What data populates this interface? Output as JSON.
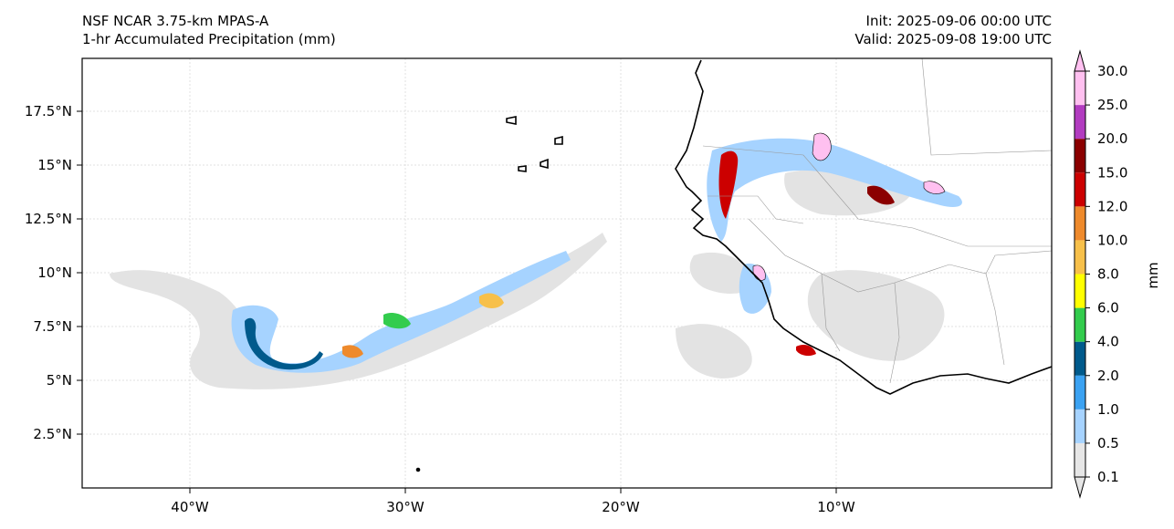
{
  "title": {
    "line1": "NSF NCAR 3.75-km MPAS-A",
    "line2": "1-hr Accumulated Precipitation (mm)",
    "init": "Init: 2025-09-06 00:00 UTC",
    "valid": "Valid: 2025-09-08 19:00 UTC"
  },
  "axes": {
    "lon_ticks": [
      "40°W",
      "30°W",
      "20°W",
      "10°W"
    ],
    "lat_ticks": [
      "17.5°N",
      "15°N",
      "12.5°N",
      "10°N",
      "7.5°N",
      "5°N",
      "2.5°N"
    ]
  },
  "colorbar": {
    "label": "mm",
    "levels": [
      "0.1",
      "0.5",
      "1.0",
      "2.0",
      "4.0",
      "6.0",
      "8.0",
      "10.0",
      "12.0",
      "15.0",
      "20.0",
      "25.0",
      "30.0"
    ],
    "colors": [
      "#e6e6e6",
      "#a6d3ff",
      "#3ba2f2",
      "#005a8c",
      "#33cc4d",
      "#ffff00",
      "#f7c04a",
      "#ee8a2c",
      "#cc0000",
      "#8b0000",
      "#b23cc0",
      "#ffc0f0"
    ]
  },
  "colors": {
    "coast": "#000000",
    "border": "#999999",
    "grid": "#d9d9d9",
    "light_rain": "#e3e3e3",
    "rain": "#a6d3ff"
  }
}
